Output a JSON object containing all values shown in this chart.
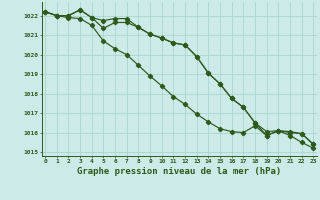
{
  "x": [
    0,
    1,
    2,
    3,
    4,
    5,
    6,
    7,
    8,
    9,
    10,
    11,
    12,
    13,
    14,
    15,
    16,
    17,
    18,
    19,
    20,
    21,
    22,
    23
  ],
  "line1": [
    1022.2,
    1022.0,
    1022.0,
    1022.3,
    1021.9,
    1021.75,
    1021.85,
    1021.85,
    1021.4,
    1021.05,
    1020.85,
    1020.6,
    1020.5,
    1019.9,
    1019.05,
    1018.5,
    1017.75,
    1017.3,
    1016.5,
    1016.05,
    1016.1,
    1016.0,
    1015.95,
    1015.4
  ],
  "line2": [
    1022.2,
    1022.0,
    1022.0,
    1022.3,
    1021.9,
    1021.35,
    1021.65,
    1021.65,
    1021.4,
    1021.05,
    1020.85,
    1020.6,
    1020.5,
    1019.9,
    1019.05,
    1018.5,
    1017.75,
    1017.3,
    1016.5,
    1015.85,
    1016.1,
    1016.05,
    1015.95,
    1015.4
  ],
  "line3": [
    1022.2,
    1022.0,
    1021.9,
    1021.85,
    1021.5,
    1020.7,
    1020.3,
    1020.0,
    1019.45,
    1018.9,
    1018.4,
    1017.85,
    1017.45,
    1016.95,
    1016.55,
    1016.2,
    1016.05,
    1016.0,
    1016.35,
    1015.85,
    1016.1,
    1015.85,
    1015.5,
    1015.2
  ],
  "ylim": [
    1014.8,
    1022.7
  ],
  "yticks": [
    1015,
    1016,
    1017,
    1018,
    1019,
    1020,
    1021,
    1022
  ],
  "xlim": [
    -0.3,
    23.3
  ],
  "xlabel": "Graphe pression niveau de la mer (hPa)",
  "bg_color": "#cceae7",
  "line_color": "#2d5a1b",
  "grid_color": "#aad4d0",
  "markersize": 2.2,
  "linewidth": 0.85
}
